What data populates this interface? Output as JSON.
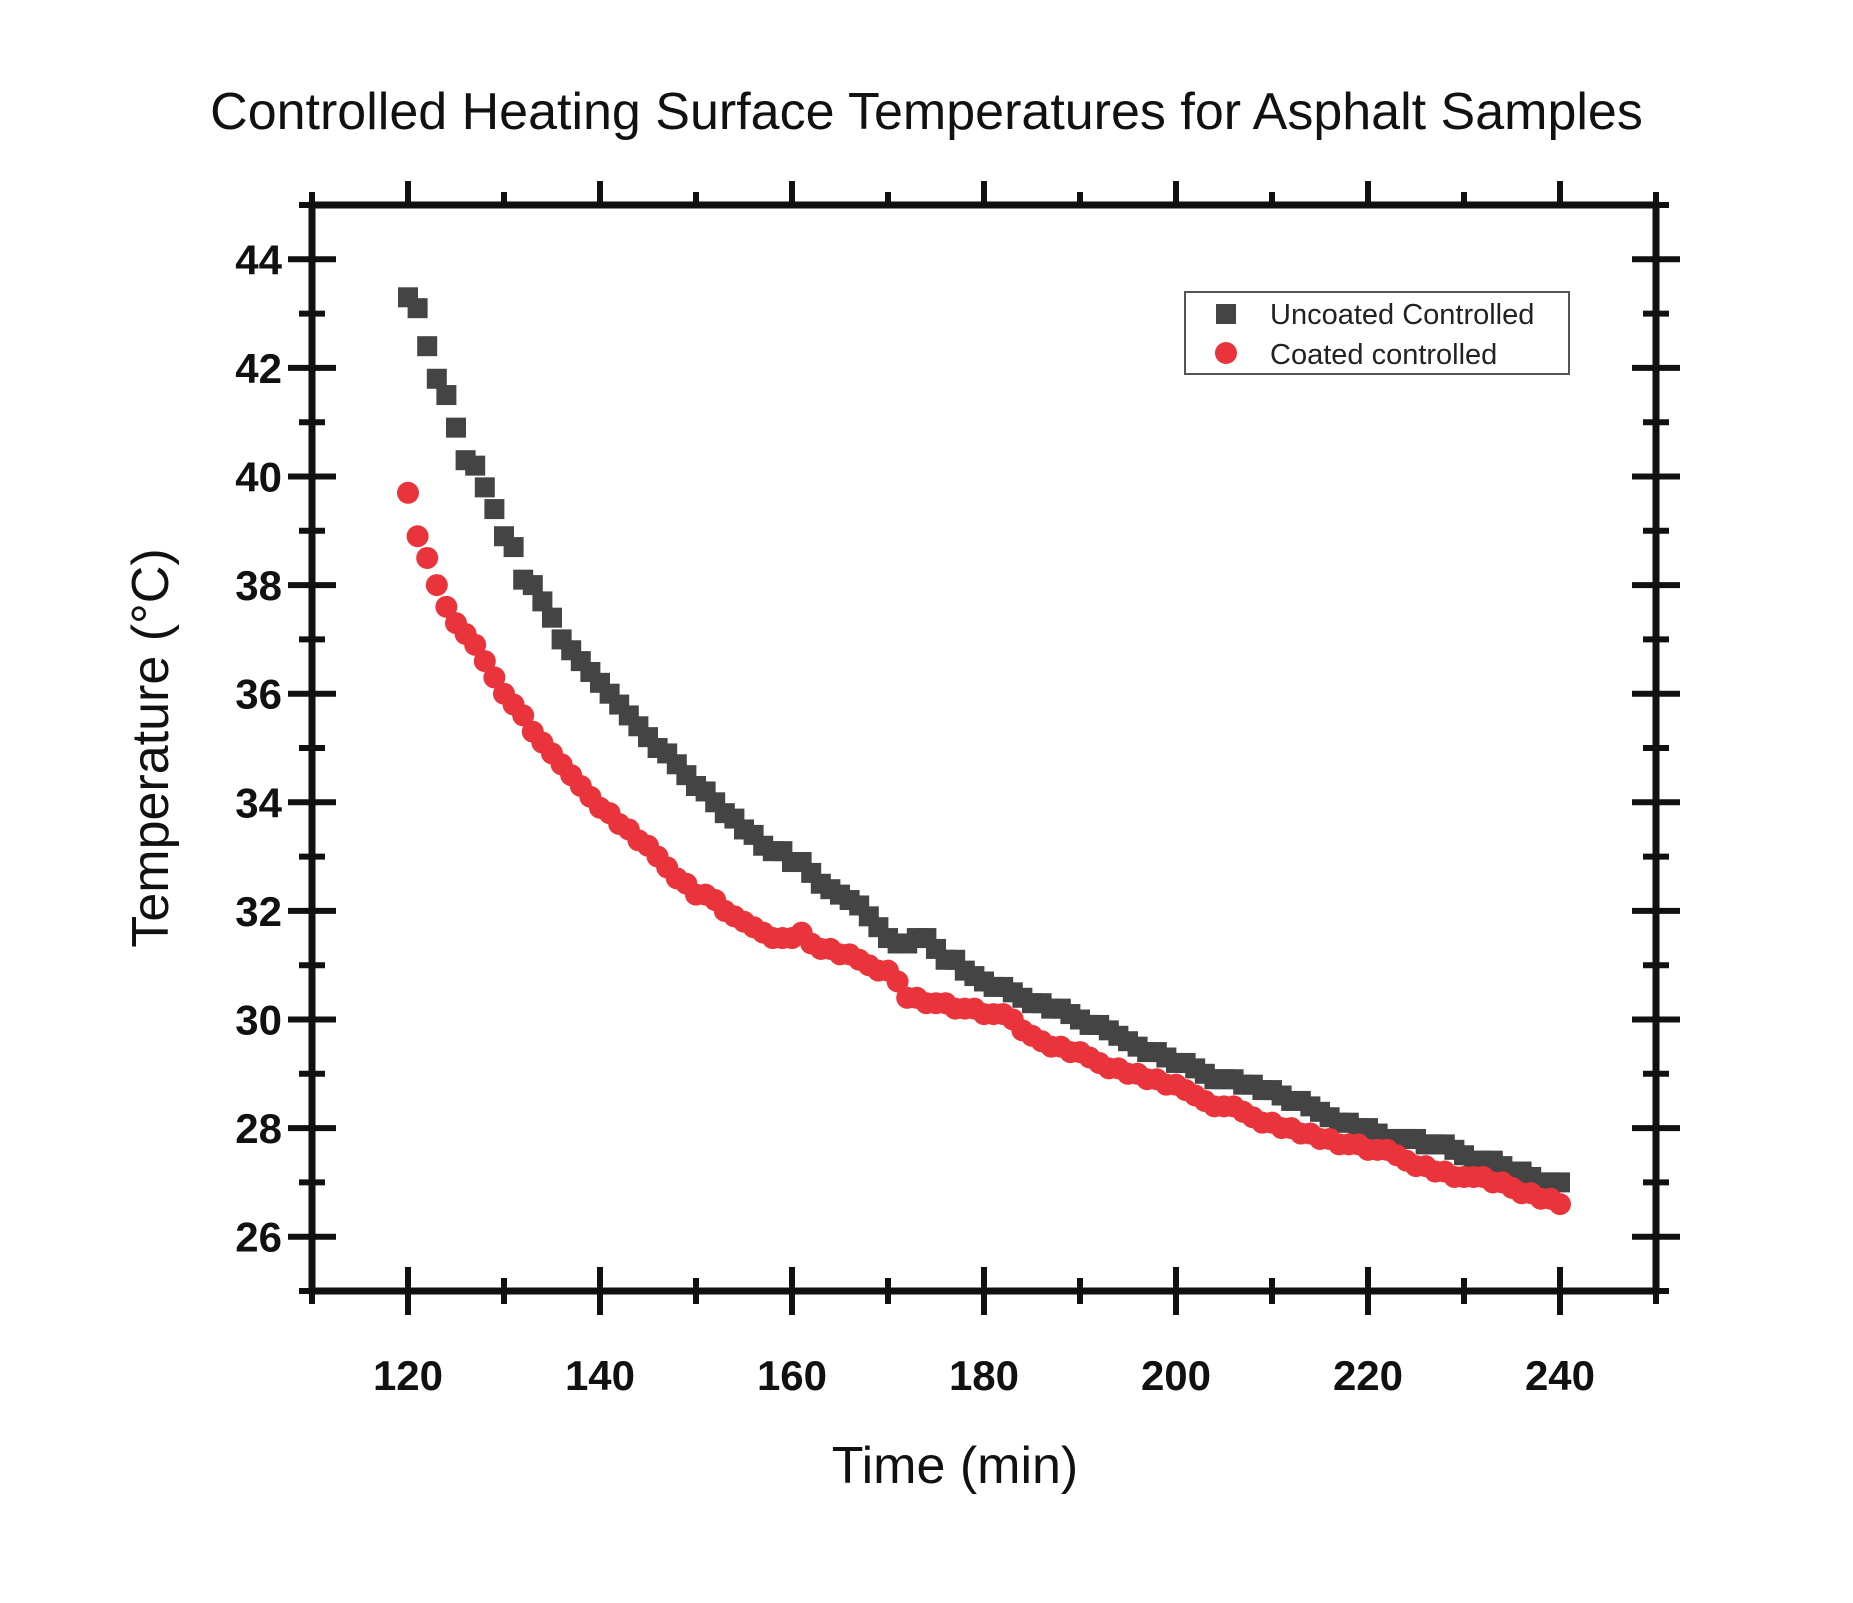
{
  "chart_data": {
    "type": "scatter",
    "title": "Controlled Heating Surface Temperatures for Asphalt Samples",
    "xlabel": "Time (min)",
    "ylabel": "Temperature (°C)",
    "xlim": [
      110,
      250
    ],
    "ylim": [
      25,
      45
    ],
    "xticks": [
      120,
      140,
      160,
      180,
      200,
      220,
      240
    ],
    "yticks": [
      26,
      28,
      30,
      32,
      34,
      36,
      38,
      40,
      42,
      44
    ],
    "grid": false,
    "legend_position": "top-right",
    "series": [
      {
        "name": "Uncoated Controlled",
        "marker": "square",
        "color": "#444444",
        "x": [
          120,
          121,
          122,
          123,
          124,
          125,
          126,
          127,
          128,
          129,
          130,
          131,
          132,
          133,
          134,
          135,
          136,
          137,
          138,
          139,
          140,
          141,
          142,
          143,
          144,
          145,
          146,
          147,
          148,
          149,
          150,
          151,
          152,
          153,
          154,
          155,
          156,
          157,
          158,
          159,
          160,
          161,
          162,
          163,
          164,
          165,
          166,
          167,
          168,
          169,
          170,
          171,
          172,
          173,
          174,
          175,
          176,
          177,
          178,
          179,
          180,
          181,
          182,
          183,
          184,
          185,
          186,
          187,
          188,
          189,
          190,
          191,
          192,
          193,
          194,
          195,
          196,
          197,
          198,
          199,
          200,
          201,
          202,
          203,
          204,
          205,
          206,
          207,
          208,
          209,
          210,
          211,
          212,
          213,
          214,
          215,
          216,
          217,
          218,
          219,
          220,
          221,
          222,
          223,
          224,
          225,
          226,
          227,
          228,
          229,
          230,
          231,
          232,
          233,
          234,
          235,
          236,
          237,
          238,
          239,
          240
        ],
        "y": [
          43.3,
          43.1,
          42.4,
          41.8,
          41.5,
          40.9,
          40.3,
          40.2,
          39.8,
          39.4,
          38.9,
          38.7,
          38.1,
          38.0,
          37.7,
          37.4,
          37.0,
          36.8,
          36.6,
          36.4,
          36.2,
          36.0,
          35.8,
          35.6,
          35.4,
          35.2,
          35.0,
          34.9,
          34.7,
          34.5,
          34.3,
          34.2,
          34.0,
          33.8,
          33.7,
          33.5,
          33.4,
          33.2,
          33.1,
          33.1,
          32.9,
          32.9,
          32.7,
          32.5,
          32.4,
          32.3,
          32.2,
          32.1,
          31.9,
          31.7,
          31.5,
          31.4,
          31.4,
          31.5,
          31.5,
          31.3,
          31.1,
          31.1,
          30.9,
          30.8,
          30.7,
          30.6,
          30.6,
          30.5,
          30.4,
          30.3,
          30.3,
          30.2,
          30.2,
          30.1,
          30.0,
          29.9,
          29.9,
          29.8,
          29.7,
          29.6,
          29.5,
          29.4,
          29.4,
          29.3,
          29.2,
          29.2,
          29.1,
          29.0,
          28.9,
          28.9,
          28.9,
          28.8,
          28.8,
          28.7,
          28.7,
          28.6,
          28.5,
          28.5,
          28.4,
          28.3,
          28.2,
          28.1,
          28.1,
          28.0,
          28.0,
          27.9,
          27.8,
          27.8,
          27.8,
          27.8,
          27.7,
          27.7,
          27.7,
          27.6,
          27.5,
          27.4,
          27.4,
          27.4,
          27.3,
          27.2,
          27.2,
          27.1,
          27.0,
          27.0,
          27.0
        ]
      },
      {
        "name": "Coated controlled",
        "marker": "circle",
        "color": "#e8343a",
        "x": [
          120,
          121,
          122,
          123,
          124,
          125,
          126,
          127,
          128,
          129,
          130,
          131,
          132,
          133,
          134,
          135,
          136,
          137,
          138,
          139,
          140,
          141,
          142,
          143,
          144,
          145,
          146,
          147,
          148,
          149,
          150,
          151,
          152,
          153,
          154,
          155,
          156,
          157,
          158,
          159,
          160,
          161,
          162,
          163,
          164,
          165,
          166,
          167,
          168,
          169,
          170,
          171,
          172,
          173,
          174,
          175,
          176,
          177,
          178,
          179,
          180,
          181,
          182,
          183,
          184,
          185,
          186,
          187,
          188,
          189,
          190,
          191,
          192,
          193,
          194,
          195,
          196,
          197,
          198,
          199,
          200,
          201,
          202,
          203,
          204,
          205,
          206,
          207,
          208,
          209,
          210,
          211,
          212,
          213,
          214,
          215,
          216,
          217,
          218,
          219,
          220,
          221,
          222,
          223,
          224,
          225,
          226,
          227,
          228,
          229,
          230,
          231,
          232,
          233,
          234,
          235,
          236,
          237,
          238,
          239,
          240
        ],
        "y": [
          39.7,
          38.9,
          38.5,
          38.0,
          37.6,
          37.3,
          37.1,
          36.9,
          36.6,
          36.3,
          36.0,
          35.8,
          35.6,
          35.3,
          35.1,
          34.9,
          34.7,
          34.5,
          34.3,
          34.1,
          33.9,
          33.8,
          33.6,
          33.5,
          33.3,
          33.2,
          33.0,
          32.8,
          32.6,
          32.5,
          32.3,
          32.3,
          32.2,
          32.0,
          31.9,
          31.8,
          31.7,
          31.6,
          31.5,
          31.5,
          31.5,
          31.6,
          31.4,
          31.3,
          31.3,
          31.2,
          31.2,
          31.1,
          31.0,
          30.9,
          30.9,
          30.7,
          30.4,
          30.4,
          30.3,
          30.3,
          30.3,
          30.2,
          30.2,
          30.2,
          30.1,
          30.1,
          30.1,
          30.0,
          29.8,
          29.7,
          29.6,
          29.5,
          29.5,
          29.4,
          29.4,
          29.3,
          29.2,
          29.1,
          29.1,
          29.0,
          29.0,
          28.9,
          28.9,
          28.8,
          28.8,
          28.7,
          28.6,
          28.5,
          28.4,
          28.4,
          28.4,
          28.3,
          28.2,
          28.1,
          28.1,
          28.0,
          28.0,
          27.9,
          27.9,
          27.8,
          27.8,
          27.7,
          27.7,
          27.7,
          27.6,
          27.6,
          27.6,
          27.5,
          27.4,
          27.3,
          27.3,
          27.2,
          27.2,
          27.1,
          27.1,
          27.1,
          27.1,
          27.0,
          27.0,
          26.9,
          26.8,
          26.8,
          26.7,
          26.7,
          26.6
        ]
      }
    ]
  }
}
